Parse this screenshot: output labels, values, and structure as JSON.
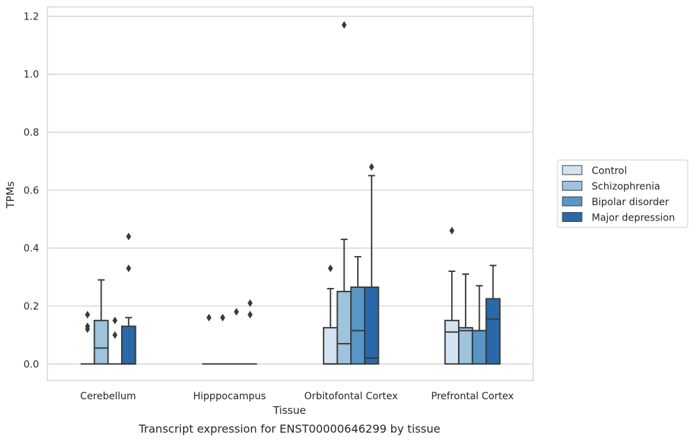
{
  "chart_data": {
    "type": "box",
    "title": "",
    "caption": "Transcript expression for ENST00000646299 by tissue",
    "xlabel": "Tissue",
    "ylabel": "TPMs",
    "ylim": [
      -0.057,
      1.232
    ],
    "yticks": [
      0.0,
      0.2,
      0.4,
      0.6,
      0.8,
      1.0,
      1.2
    ],
    "ytick_labels": [
      "0.0",
      "0.2",
      "0.4",
      "0.6",
      "0.8",
      "1.0",
      "1.2"
    ],
    "grid": "horizontal",
    "legend_position": "right",
    "categories": [
      "Cerebellum",
      "Hipppocampus",
      "Orbitofontal Cortex",
      "Prefrontal Cortex"
    ],
    "series": [
      {
        "name": "Control",
        "color": "#d4e3f2",
        "boxes": [
          {
            "q1": 0,
            "median": 0,
            "q3": 0,
            "whisker_low": 0,
            "whisker_high": 0,
            "outliers": [
              0.12,
              0.13,
              0.17
            ]
          },
          {
            "q1": 0,
            "median": 0,
            "q3": 0,
            "whisker_low": 0,
            "whisker_high": 0,
            "outliers": [
              0.16
            ]
          },
          {
            "q1": 0,
            "median": 0,
            "q3": 0.125,
            "whisker_low": 0,
            "whisker_high": 0.26,
            "outliers": [
              0.33
            ]
          },
          {
            "q1": 0,
            "median": 0.11,
            "q3": 0.15,
            "whisker_low": 0,
            "whisker_high": 0.32,
            "outliers": [
              0.46
            ]
          }
        ]
      },
      {
        "name": "Schizophrenia",
        "color": "#9dc3de",
        "boxes": [
          {
            "q1": 0,
            "median": 0.055,
            "q3": 0.15,
            "whisker_low": 0,
            "whisker_high": 0.29,
            "outliers": []
          },
          {
            "q1": 0,
            "median": 0,
            "q3": 0,
            "whisker_low": 0,
            "whisker_high": 0,
            "outliers": [
              0.16
            ]
          },
          {
            "q1": 0,
            "median": 0.07,
            "q3": 0.25,
            "whisker_low": 0,
            "whisker_high": 0.43,
            "outliers": [
              1.17
            ]
          },
          {
            "q1": 0,
            "median": 0.115,
            "q3": 0.125,
            "whisker_low": 0,
            "whisker_high": 0.31,
            "outliers": []
          }
        ]
      },
      {
        "name": "Bipolar disorder",
        "color": "#5796c5",
        "boxes": [
          {
            "q1": 0,
            "median": 0,
            "q3": 0,
            "whisker_low": 0,
            "whisker_high": 0,
            "outliers": [
              0.1,
              0.15
            ]
          },
          {
            "q1": 0,
            "median": 0,
            "q3": 0,
            "whisker_low": 0,
            "whisker_high": 0,
            "outliers": [
              0.18
            ]
          },
          {
            "q1": 0,
            "median": 0.115,
            "q3": 0.265,
            "whisker_low": 0,
            "whisker_high": 0.37,
            "outliers": []
          },
          {
            "q1": 0,
            "median": 0.115,
            "q3": 0.115,
            "whisker_low": 0,
            "whisker_high": 0.27,
            "outliers": []
          }
        ]
      },
      {
        "name": "Major depression",
        "color": "#2a69a9",
        "boxes": [
          {
            "q1": 0,
            "median": 0,
            "q3": 0.13,
            "whisker_low": 0,
            "whisker_high": 0.16,
            "outliers": [
              0.33,
              0.44
            ]
          },
          {
            "q1": 0,
            "median": 0,
            "q3": 0,
            "whisker_low": 0,
            "whisker_high": 0,
            "outliers": [
              0.17,
              0.21
            ]
          },
          {
            "q1": 0,
            "median": 0.02,
            "q3": 0.265,
            "whisker_low": 0,
            "whisker_high": 0.65,
            "outliers": [
              0.68
            ]
          },
          {
            "q1": 0,
            "median": 0.155,
            "q3": 0.225,
            "whisker_low": 0,
            "whisker_high": 0.34,
            "outliers": []
          }
        ]
      }
    ]
  }
}
